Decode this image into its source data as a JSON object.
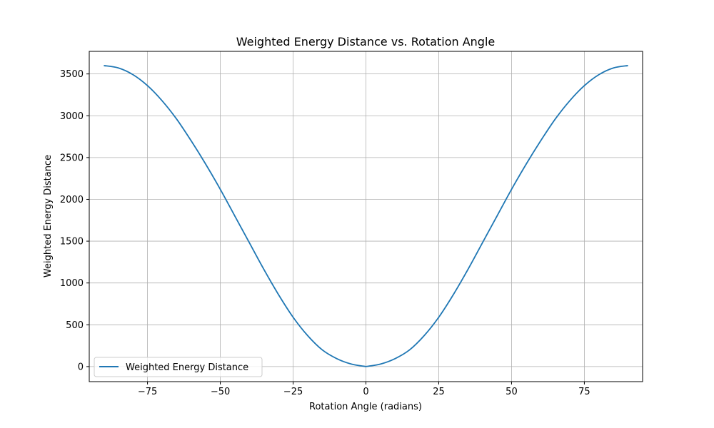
{
  "chart_data": {
    "type": "line",
    "title": "Weighted Energy Distance vs. Rotation Angle",
    "xlabel": "Rotation Angle (radians)",
    "ylabel": "Weighted Energy Distance",
    "xlim": [
      -95,
      95
    ],
    "ylim": [
      -180,
      3770
    ],
    "xticks": [
      -75,
      -50,
      -25,
      0,
      25,
      50,
      75
    ],
    "xtick_labels": [
      "−75",
      "−50",
      "−25",
      "0",
      "25",
      "50",
      "75"
    ],
    "yticks": [
      0,
      500,
      1000,
      1500,
      2000,
      2500,
      3000,
      3500
    ],
    "ytick_labels": [
      "0",
      "500",
      "1000",
      "1500",
      "2000",
      "2500",
      "3000",
      "3500"
    ],
    "grid": true,
    "legend_position": "lower-left",
    "series": [
      {
        "name": "Weighted Energy Distance",
        "color": "#1f77b4",
        "x": [
          -90,
          -85,
          -80,
          -75,
          -70,
          -65,
          -60,
          -55,
          -50,
          -45,
          -40,
          -35,
          -30,
          -25,
          -20,
          -15,
          -10,
          -5,
          0,
          5,
          10,
          15,
          20,
          25,
          30,
          35,
          40,
          45,
          50,
          55,
          60,
          65,
          70,
          75,
          80,
          85,
          90
        ],
        "y": [
          3600,
          3572,
          3492,
          3360,
          3180,
          2960,
          2700,
          2420,
          2120,
          1800,
          1480,
          1160,
          860,
          590,
          370,
          200,
          95,
          30,
          0,
          30,
          95,
          200,
          370,
          590,
          860,
          1160,
          1480,
          1800,
          2120,
          2420,
          2700,
          2960,
          3180,
          3360,
          3492,
          3572,
          3600
        ]
      }
    ]
  }
}
